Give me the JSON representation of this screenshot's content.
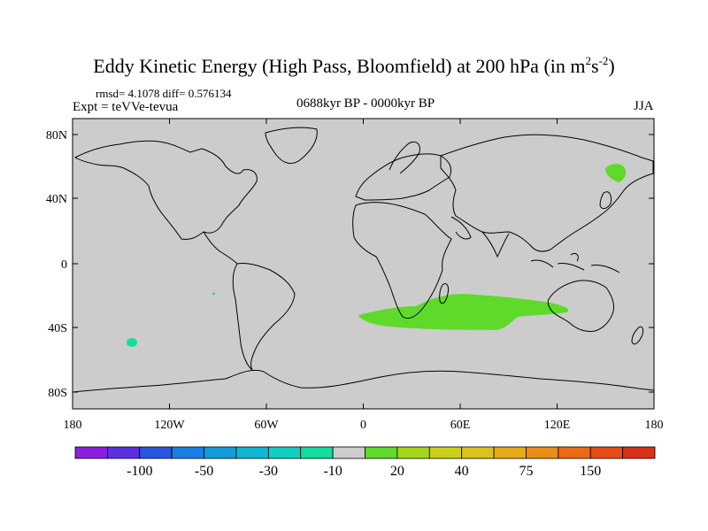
{
  "title": {
    "main": "Eddy Kinetic Energy (High Pass, Bloomfield) at 200 hPa (in m",
    "sup1": "2",
    "mid": "s",
    "sup2": "-2",
    "end": ")"
  },
  "stats": "rmsd= 4.1078 diff= 0.576134",
  "experiment": "Expt = teVVe-tevua",
  "period": "0688kyr BP - 0000kyr BP",
  "season": "JJA",
  "map": {
    "land_color": "#cccccc",
    "lat_ticks": [
      "80N",
      "40N",
      "0",
      "40S",
      "80S"
    ],
    "lon_ticks": [
      "180",
      "120W",
      "60W",
      "0",
      "60E",
      "120E",
      "180"
    ]
  },
  "colorbar": {
    "colors": [
      "#8a1fe0",
      "#5a2fe0",
      "#2a55e0",
      "#1a7ee6",
      "#129cd8",
      "#10b6d2",
      "#10cfc0",
      "#11dea0",
      "#cccccc",
      "#5fd92a",
      "#a6d61a",
      "#c9d01a",
      "#dcc21a",
      "#e6aa18",
      "#ea8d16",
      "#ec6a16",
      "#e84b16",
      "#d8301a"
    ],
    "labels": [
      "-100",
      "-50",
      "-30",
      "-10",
      "20",
      "40",
      "75",
      "150"
    ]
  },
  "anomalies": [
    {
      "name": "southern-indian-ocean",
      "color": "#5fd92a"
    },
    {
      "name": "kamchatka",
      "color": "#5fd92a"
    },
    {
      "name": "south-pacific",
      "color": "#11dea0"
    },
    {
      "name": "equatorial-pacific",
      "color": "#11dea0"
    }
  ]
}
